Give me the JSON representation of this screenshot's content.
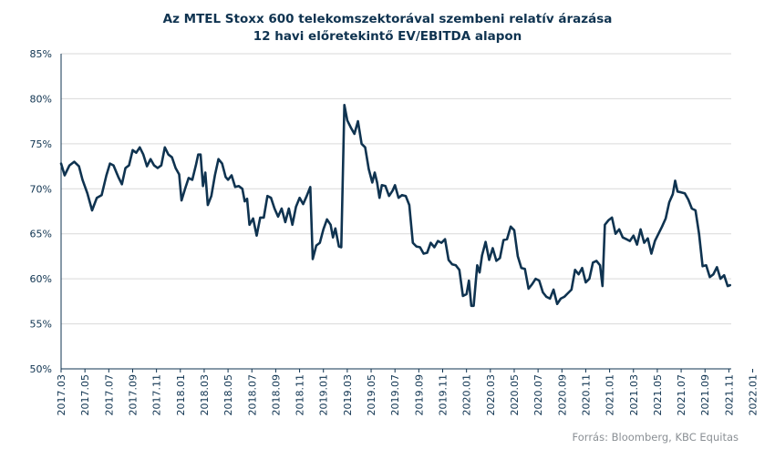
{
  "chart_data": {
    "type": "line",
    "title": "Az MTEL Stoxx 600 telekomszektorával szembeni relatív árazása",
    "subtitle": "12 havi előretekintő EV/EBITDA alapon",
    "xlabel": "",
    "ylabel": "",
    "ylim": [
      50,
      85
    ],
    "y_ticks": [
      "85%",
      "80%",
      "75%",
      "70%",
      "65%",
      "60%",
      "55%",
      "50%"
    ],
    "x_ticks": [
      "2017.03",
      "2017.05",
      "2017.07",
      "2017.09",
      "2017.11",
      "2018.01",
      "2018.03",
      "2018.05",
      "2018.07",
      "2018.09",
      "2018.11",
      "2019.01",
      "2019.03",
      "2019.05",
      "2019.07",
      "2019.09",
      "2019.11",
      "2020.01",
      "2020.03",
      "2020.05",
      "2020.07",
      "2020.09",
      "2020.11",
      "2021.01",
      "2021.03",
      "2021.05",
      "2021.07",
      "2021.09",
      "2021.11",
      "2022.01"
    ],
    "grid": true,
    "line_color": "#0f3350",
    "series": [
      {
        "points": [
          [
            0.0,
            72.8
          ],
          [
            0.15,
            71.5
          ],
          [
            0.35,
            72.6
          ],
          [
            0.55,
            73.0
          ],
          [
            0.75,
            72.5
          ],
          [
            0.9,
            71.0
          ],
          [
            1.1,
            69.5
          ],
          [
            1.3,
            67.6
          ],
          [
            1.5,
            69.0
          ],
          [
            1.7,
            69.3
          ],
          [
            1.9,
            71.5
          ],
          [
            2.05,
            72.8
          ],
          [
            2.2,
            72.6
          ],
          [
            2.4,
            71.3
          ],
          [
            2.55,
            70.5
          ],
          [
            2.7,
            72.3
          ],
          [
            2.85,
            72.6
          ],
          [
            3.0,
            74.3
          ],
          [
            3.15,
            74.0
          ],
          [
            3.3,
            74.6
          ],
          [
            3.45,
            73.8
          ],
          [
            3.6,
            72.5
          ],
          [
            3.75,
            73.3
          ],
          [
            3.9,
            72.6
          ],
          [
            4.05,
            72.3
          ],
          [
            4.2,
            72.6
          ],
          [
            4.35,
            74.6
          ],
          [
            4.5,
            73.8
          ],
          [
            4.65,
            73.5
          ],
          [
            4.8,
            72.3
          ],
          [
            4.95,
            71.6
          ],
          [
            5.05,
            68.7
          ],
          [
            5.2,
            70.0
          ],
          [
            5.35,
            71.2
          ],
          [
            5.5,
            71.0
          ],
          [
            5.65,
            72.6
          ],
          [
            5.75,
            73.8
          ],
          [
            5.85,
            73.8
          ],
          [
            5.95,
            70.3
          ],
          [
            6.05,
            71.8
          ],
          [
            6.15,
            68.2
          ],
          [
            6.3,
            69.2
          ],
          [
            6.45,
            71.5
          ],
          [
            6.6,
            73.3
          ],
          [
            6.75,
            72.8
          ],
          [
            6.9,
            71.3
          ],
          [
            7.0,
            71.0
          ],
          [
            7.15,
            71.5
          ],
          [
            7.3,
            70.2
          ],
          [
            7.45,
            70.3
          ],
          [
            7.6,
            70.0
          ],
          [
            7.7,
            68.6
          ],
          [
            7.8,
            68.9
          ],
          [
            7.9,
            66.0
          ],
          [
            8.05,
            66.7
          ],
          [
            8.2,
            64.8
          ],
          [
            8.35,
            66.8
          ],
          [
            8.5,
            66.8
          ],
          [
            8.65,
            69.2
          ],
          [
            8.8,
            69.0
          ],
          [
            8.95,
            67.8
          ],
          [
            9.1,
            66.9
          ],
          [
            9.25,
            67.8
          ],
          [
            9.4,
            66.3
          ],
          [
            9.55,
            67.8
          ],
          [
            9.7,
            66.0
          ],
          [
            9.85,
            68.0
          ],
          [
            10.0,
            69.0
          ],
          [
            10.15,
            68.3
          ],
          [
            10.3,
            69.2
          ],
          [
            10.45,
            70.2
          ],
          [
            10.55,
            62.2
          ],
          [
            10.7,
            63.7
          ],
          [
            10.85,
            64.0
          ],
          [
            11.0,
            65.5
          ],
          [
            11.15,
            66.6
          ],
          [
            11.3,
            66.0
          ],
          [
            11.4,
            64.6
          ],
          [
            11.5,
            65.6
          ],
          [
            11.65,
            63.6
          ],
          [
            11.75,
            63.5
          ],
          [
            11.88,
            79.3
          ],
          [
            12.0,
            77.6
          ],
          [
            12.15,
            76.8
          ],
          [
            12.3,
            76.1
          ],
          [
            12.45,
            77.5
          ],
          [
            12.6,
            75.0
          ],
          [
            12.75,
            74.6
          ],
          [
            12.9,
            72.2
          ],
          [
            13.05,
            70.7
          ],
          [
            13.15,
            71.8
          ],
          [
            13.25,
            70.7
          ],
          [
            13.35,
            69.0
          ],
          [
            13.45,
            70.4
          ],
          [
            13.6,
            70.3
          ],
          [
            13.75,
            69.2
          ],
          [
            13.9,
            69.8
          ],
          [
            14.0,
            70.4
          ],
          [
            14.15,
            69.0
          ],
          [
            14.3,
            69.3
          ],
          [
            14.45,
            69.2
          ],
          [
            14.6,
            68.2
          ],
          [
            14.75,
            64.0
          ],
          [
            14.9,
            63.6
          ],
          [
            15.05,
            63.5
          ],
          [
            15.2,
            62.8
          ],
          [
            15.35,
            62.9
          ],
          [
            15.5,
            64.0
          ],
          [
            15.65,
            63.5
          ],
          [
            15.8,
            64.2
          ],
          [
            15.95,
            64.0
          ],
          [
            16.1,
            64.4
          ],
          [
            16.25,
            62.1
          ],
          [
            16.4,
            61.6
          ],
          [
            16.55,
            61.5
          ],
          [
            16.7,
            61.0
          ],
          [
            16.85,
            58.1
          ],
          [
            17.0,
            58.3
          ],
          [
            17.1,
            59.8
          ],
          [
            17.2,
            57.0
          ],
          [
            17.3,
            57.0
          ],
          [
            17.45,
            61.5
          ],
          [
            17.55,
            60.7
          ],
          [
            17.65,
            62.6
          ],
          [
            17.8,
            64.1
          ],
          [
            17.95,
            62.1
          ],
          [
            18.1,
            63.4
          ],
          [
            18.25,
            62.0
          ],
          [
            18.4,
            62.3
          ],
          [
            18.55,
            64.3
          ],
          [
            18.7,
            64.4
          ],
          [
            18.85,
            65.8
          ],
          [
            19.0,
            65.4
          ],
          [
            19.15,
            62.5
          ],
          [
            19.3,
            61.2
          ],
          [
            19.45,
            61.1
          ],
          [
            19.6,
            58.9
          ],
          [
            19.75,
            59.4
          ],
          [
            19.9,
            60.0
          ],
          [
            20.05,
            59.8
          ],
          [
            20.2,
            58.5
          ],
          [
            20.35,
            58.0
          ],
          [
            20.5,
            57.8
          ],
          [
            20.65,
            58.8
          ],
          [
            20.8,
            57.2
          ],
          [
            20.95,
            57.8
          ],
          [
            21.1,
            58.0
          ],
          [
            21.25,
            58.4
          ],
          [
            21.4,
            58.8
          ],
          [
            21.55,
            61.0
          ],
          [
            21.7,
            60.5
          ],
          [
            21.85,
            61.2
          ],
          [
            22.0,
            59.6
          ],
          [
            22.15,
            60.0
          ],
          [
            22.3,
            61.8
          ],
          [
            22.45,
            62.0
          ],
          [
            22.6,
            61.5
          ],
          [
            22.7,
            59.2
          ],
          [
            22.8,
            66.0
          ],
          [
            22.95,
            66.5
          ],
          [
            23.1,
            66.8
          ],
          [
            23.25,
            65.0
          ],
          [
            23.4,
            65.5
          ],
          [
            23.55,
            64.6
          ],
          [
            23.7,
            64.4
          ],
          [
            23.85,
            64.2
          ],
          [
            24.0,
            64.8
          ],
          [
            24.15,
            63.8
          ],
          [
            24.3,
            65.5
          ],
          [
            24.45,
            64.0
          ],
          [
            24.6,
            64.5
          ],
          [
            24.75,
            62.8
          ],
          [
            24.9,
            64.2
          ],
          [
            25.05,
            65.0
          ],
          [
            25.2,
            65.8
          ],
          [
            25.35,
            66.7
          ],
          [
            25.5,
            68.5
          ],
          [
            25.65,
            69.4
          ],
          [
            25.75,
            70.9
          ],
          [
            25.85,
            69.7
          ],
          [
            26.0,
            69.6
          ],
          [
            26.15,
            69.5
          ],
          [
            26.3,
            68.8
          ],
          [
            26.45,
            67.8
          ],
          [
            26.6,
            67.6
          ],
          [
            26.75,
            65.0
          ],
          [
            26.9,
            61.4
          ],
          [
            27.05,
            61.5
          ],
          [
            27.2,
            60.2
          ],
          [
            27.35,
            60.5
          ],
          [
            27.5,
            61.3
          ],
          [
            27.65,
            60.0
          ],
          [
            27.8,
            60.4
          ],
          [
            27.95,
            59.2
          ],
          [
            28.05,
            59.3
          ]
        ]
      }
    ]
  },
  "source": "Forrás: Bloomberg, KBC Equitas"
}
